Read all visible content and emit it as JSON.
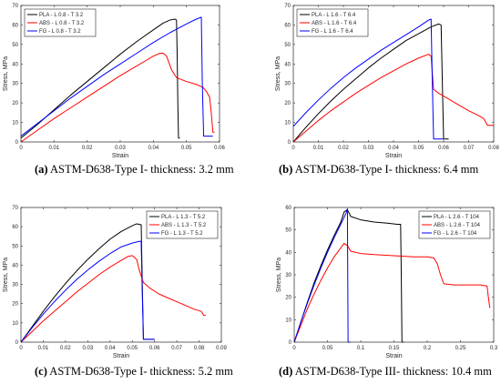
{
  "chart_data": [
    {
      "type": "line",
      "caption_letter": "(a)",
      "caption_text": " ASTM-D638-Type I- thickness: 3.2 mm",
      "xlabel": "Strain",
      "ylabel": "Stress, MPa",
      "xlim": [
        0,
        0.06
      ],
      "ylim": [
        0,
        70
      ],
      "xticks": [
        0,
        0.01,
        0.02,
        0.03,
        0.04,
        0.05,
        0.06
      ],
      "xtick_labels": [
        "0",
        "0.01",
        "0.02",
        "0.03",
        "0.04",
        "0.05",
        "0.06"
      ],
      "yticks": [
        0,
        10,
        20,
        30,
        40,
        50,
        60,
        70
      ],
      "ytick_labels": [
        "0",
        "10",
        "20",
        "30",
        "40",
        "50",
        "60",
        "70"
      ],
      "legend_position": "top-left",
      "series": [
        {
          "name": "PLA - L 0.8 - T 3.2",
          "color": "#000000",
          "x": [
            0,
            0.005,
            0.01,
            0.015,
            0.02,
            0.025,
            0.03,
            0.035,
            0.04,
            0.043,
            0.045,
            0.0465,
            0.047,
            0.0472,
            0.0474,
            0.0476,
            0.048
          ],
          "y": [
            2,
            9,
            16.5,
            24,
            31,
            38,
            45,
            51.5,
            57.5,
            61,
            62.5,
            63,
            62.5,
            45,
            20,
            2,
            2
          ]
        },
        {
          "name": "ABS - L 0.8 - T 3.2",
          "color": "#ff0000",
          "x": [
            0,
            0.005,
            0.01,
            0.015,
            0.02,
            0.025,
            0.03,
            0.035,
            0.038,
            0.04,
            0.042,
            0.043,
            0.044,
            0.0455,
            0.047,
            0.05,
            0.053,
            0.055,
            0.056,
            0.057,
            0.0575,
            0.058,
            0.0585
          ],
          "y": [
            0,
            6,
            12,
            17.5,
            23,
            28.5,
            34,
            39,
            42,
            44,
            45.5,
            45.5,
            44,
            37,
            33,
            31,
            29.5,
            28,
            26,
            23,
            15,
            5,
            5
          ]
        },
        {
          "name": "FG - L 0.8 - T 3.2",
          "color": "#0000ff",
          "x": [
            0,
            0.005,
            0.01,
            0.015,
            0.02,
            0.025,
            0.03,
            0.035,
            0.04,
            0.045,
            0.05,
            0.053,
            0.0545,
            0.0548,
            0.0552,
            0.056,
            0.058
          ],
          "y": [
            3,
            9.5,
            16,
            22.5,
            28.5,
            34.5,
            40,
            45.5,
            51,
            56,
            60.5,
            63,
            64,
            30,
            3,
            3,
            3
          ]
        }
      ]
    },
    {
      "type": "line",
      "caption_letter": "(b)",
      "caption_text": " ASTM-D638-Type I- thickness: 6.4 mm",
      "xlabel": "Strain",
      "ylabel": "Stress, MPa",
      "xlim": [
        0,
        0.08
      ],
      "ylim": [
        0,
        70
      ],
      "xticks": [
        0,
        0.01,
        0.02,
        0.03,
        0.04,
        0.05,
        0.06,
        0.07,
        0.08
      ],
      "xtick_labels": [
        "0",
        "0.01",
        "0.02",
        "0.03",
        "0.04",
        "0.05",
        "0.06",
        "0.07",
        "0.08"
      ],
      "yticks": [
        0,
        10,
        20,
        30,
        40,
        50,
        60,
        70
      ],
      "ytick_labels": [
        "0",
        "10",
        "20",
        "30",
        "40",
        "50",
        "60",
        "70"
      ],
      "legend_position": "top-left",
      "series": [
        {
          "name": "PLA - L 1.6 - T 6.4",
          "color": "#000000",
          "x": [
            0,
            0.005,
            0.01,
            0.015,
            0.02,
            0.025,
            0.03,
            0.035,
            0.04,
            0.045,
            0.05,
            0.055,
            0.058,
            0.059,
            0.0595,
            0.06,
            0.062
          ],
          "y": [
            0,
            7.5,
            14.5,
            21,
            27,
            32.5,
            38,
            43,
            47.5,
            52,
            55.5,
            59,
            60.5,
            60,
            30,
            1.5,
            1.5
          ]
        },
        {
          "name": "ABS - L 1.6 - T 6.4",
          "color": "#ff0000",
          "x": [
            0,
            0.005,
            0.01,
            0.015,
            0.02,
            0.025,
            0.03,
            0.035,
            0.04,
            0.045,
            0.05,
            0.054,
            0.055,
            0.0555,
            0.056,
            0.058,
            0.062,
            0.066,
            0.07,
            0.074,
            0.076,
            0.0775,
            0.08
          ],
          "y": [
            0,
            5.5,
            11,
            16,
            20.5,
            25,
            29,
            33,
            36.5,
            40,
            43,
            45,
            44,
            35,
            27,
            25,
            22,
            19,
            16,
            13.5,
            12,
            8.5,
            8.5
          ]
        },
        {
          "name": "FG - L 1.6 - T 6.4",
          "color": "#0000ff",
          "x": [
            0,
            0.005,
            0.01,
            0.015,
            0.02,
            0.025,
            0.03,
            0.035,
            0.04,
            0.045,
            0.05,
            0.054,
            0.055,
            0.0555,
            0.056,
            0.06
          ],
          "y": [
            8,
            15,
            21.5,
            27.5,
            33,
            38,
            42.5,
            47,
            51,
            55,
            59,
            62.5,
            63,
            30,
            1.5,
            1.5
          ]
        }
      ]
    },
    {
      "type": "line",
      "caption_letter": "(c)",
      "caption_text": " ASTM-D638-Type I- thickness: 5.2 mm",
      "xlabel": "Strain",
      "ylabel": "Stress, MPa",
      "xlim": [
        0,
        0.09
      ],
      "ylim": [
        0,
        70
      ],
      "xticks": [
        0,
        0.01,
        0.02,
        0.03,
        0.04,
        0.05,
        0.06,
        0.07,
        0.08,
        0.09
      ],
      "xtick_labels": [
        "0",
        "0.01",
        "0.02",
        "0.03",
        "0.04",
        "0.05",
        "0.06",
        "0.07",
        "0.08",
        "0.09"
      ],
      "yticks": [
        0,
        10,
        20,
        30,
        40,
        50,
        60,
        70
      ],
      "ytick_labels": [
        "0",
        "10",
        "20",
        "30",
        "40",
        "50",
        "60",
        "70"
      ],
      "legend_position": "top-right",
      "series": [
        {
          "name": "PLA - L 1.3 - T 5.2",
          "color": "#000000",
          "x": [
            0,
            0.005,
            0.01,
            0.015,
            0.02,
            0.025,
            0.03,
            0.035,
            0.04,
            0.045,
            0.05,
            0.052,
            0.054,
            0.0545,
            0.055,
            0.056,
            0.06
          ],
          "y": [
            0,
            8,
            16,
            23.5,
            30.5,
            37,
            43,
            48.5,
            53.5,
            57.5,
            60.5,
            61.5,
            61,
            30,
            1.5,
            1.5,
            1.5
          ]
        },
        {
          "name": "ABS - L 1.3 - T 5.2",
          "color": "#ff0000",
          "x": [
            0,
            0.005,
            0.01,
            0.015,
            0.02,
            0.025,
            0.03,
            0.035,
            0.04,
            0.045,
            0.048,
            0.05,
            0.052,
            0.053,
            0.055,
            0.058,
            0.062,
            0.066,
            0.07,
            0.074,
            0.078,
            0.081,
            0.082,
            0.083
          ],
          "y": [
            0,
            5.5,
            11,
            16,
            21,
            26,
            30.5,
            35,
            39,
            42.5,
            44.5,
            45,
            43,
            38,
            31,
            28,
            25,
            23,
            21,
            19,
            17,
            16,
            14,
            14
          ]
        },
        {
          "name": "FG - L 1.3 - T 5.2",
          "color": "#0000ff",
          "x": [
            0,
            0.005,
            0.01,
            0.015,
            0.02,
            0.025,
            0.03,
            0.035,
            0.04,
            0.045,
            0.05,
            0.0535,
            0.054,
            0.0545,
            0.055,
            0.06
          ],
          "y": [
            0,
            7.5,
            14.5,
            21,
            27,
            32.5,
            37.5,
            42,
            46,
            49.5,
            51.5,
            52.5,
            52,
            25,
            1.5,
            1.5
          ]
        }
      ]
    },
    {
      "type": "line",
      "caption_letter": "(d)",
      "caption_text": " ASTM-D638-Type III- thickness: 10.4 mm",
      "xlabel": "Strain",
      "ylabel": "Stress, MPa",
      "xlim": [
        0,
        0.3
      ],
      "ylim": [
        0,
        60
      ],
      "xticks": [
        0,
        0.05,
        0.1,
        0.15,
        0.2,
        0.25,
        0.3
      ],
      "xtick_labels": [
        "0",
        "0.05",
        "0.1",
        "0.15",
        "0.2",
        "0.25",
        "0.3"
      ],
      "yticks": [
        0,
        10,
        20,
        30,
        40,
        50,
        60
      ],
      "ytick_labels": [
        "0",
        "10",
        "20",
        "30",
        "40",
        "50",
        "60"
      ],
      "legend_position": "top-right",
      "series": [
        {
          "name": "PLA - L 2.6 - T 104",
          "color": "#000000",
          "x": [
            0,
            0.01,
            0.02,
            0.03,
            0.04,
            0.05,
            0.06,
            0.07,
            0.075,
            0.08,
            0.085,
            0.1,
            0.12,
            0.14,
            0.155,
            0.16,
            0.161,
            0.162,
            0.165
          ],
          "y": [
            0,
            9,
            18,
            26.5,
            34,
            41,
            47.5,
            53.5,
            58,
            59,
            56,
            54.5,
            53.5,
            53,
            52.5,
            52.5,
            30,
            0,
            0
          ]
        },
        {
          "name": "ABS - L 2.6 - T 104",
          "color": "#ff0000",
          "x": [
            0,
            0.01,
            0.02,
            0.03,
            0.04,
            0.05,
            0.06,
            0.07,
            0.075,
            0.08,
            0.085,
            0.1,
            0.12,
            0.15,
            0.18,
            0.2,
            0.21,
            0.215,
            0.22,
            0.225,
            0.24,
            0.26,
            0.28,
            0.29,
            0.292,
            0.294,
            0.295
          ],
          "y": [
            0,
            7.5,
            15,
            21.5,
            27.5,
            33,
            38,
            42,
            44,
            43,
            40.5,
            39.5,
            39,
            38.5,
            38,
            38,
            37.5,
            35,
            30,
            26,
            25.5,
            25.5,
            25.5,
            25,
            20,
            15.5,
            15.5
          ]
        },
        {
          "name": "FG - L 2.6 - T 104",
          "color": "#0000ff",
          "x": [
            0,
            0.01,
            0.02,
            0.03,
            0.04,
            0.05,
            0.06,
            0.07,
            0.078,
            0.08,
            0.0805,
            0.081,
            0.085
          ],
          "y": [
            0,
            9,
            17.5,
            25.5,
            33,
            40,
            46.5,
            52.5,
            57.5,
            59.5,
            30,
            0,
            0
          ]
        }
      ]
    }
  ]
}
